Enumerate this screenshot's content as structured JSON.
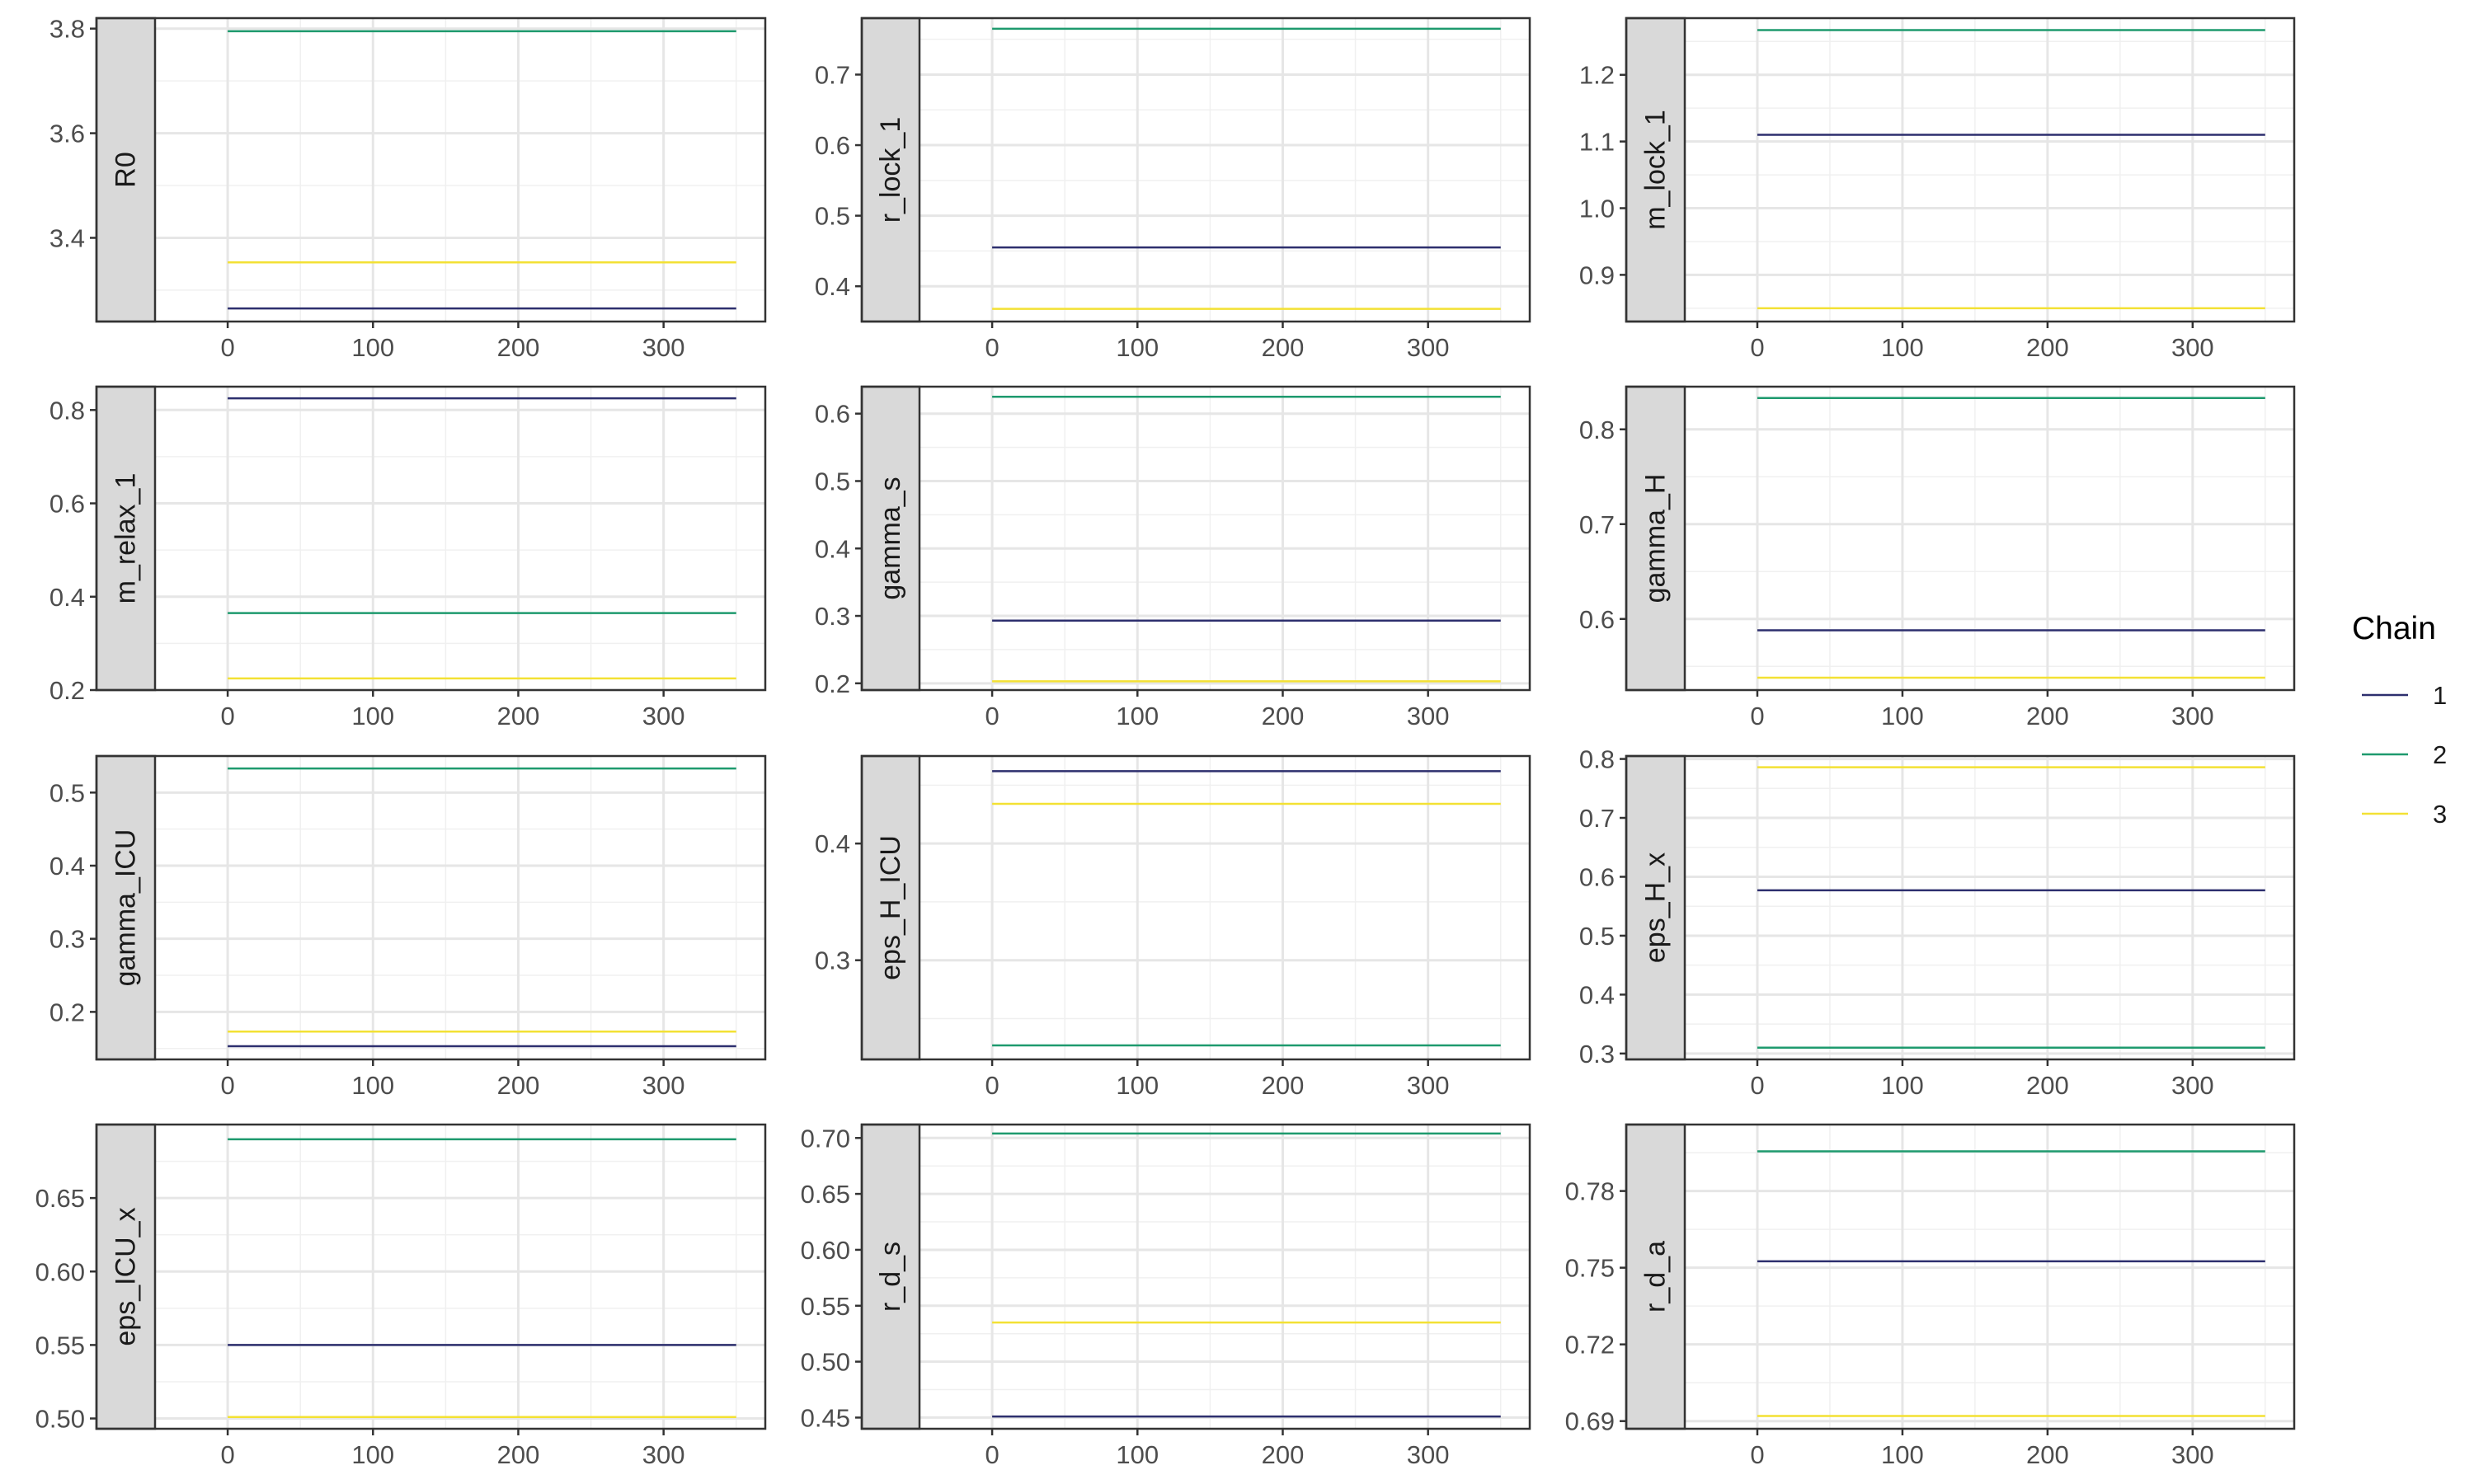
{
  "chart_data": {
    "type": "line",
    "x_ticks": [
      0,
      100,
      200,
      300
    ],
    "xlim": [
      -50,
      370
    ],
    "legend": {
      "title": "Chain",
      "position": "right",
      "entries": [
        {
          "label": "1",
          "color": "#2d2f6e"
        },
        {
          "label": "2",
          "color": "#1e9a6e"
        },
        {
          "label": "3",
          "color": "#f3e134"
        }
      ]
    },
    "facets": [
      {
        "label": "R0",
        "ylim": [
          3.24,
          3.82
        ],
        "y_ticks": [
          "3.4",
          "3.6",
          "3.8"
        ],
        "values": [
          3.265,
          3.795,
          3.353
        ]
      },
      {
        "label": "r_lock_1",
        "ylim": [
          0.35,
          0.78
        ],
        "y_ticks": [
          "0.4",
          "0.5",
          "0.6",
          "0.7"
        ],
        "values": [
          0.455,
          0.765,
          0.368
        ]
      },
      {
        "label": "m_lock_1",
        "ylim": [
          0.83,
          1.285
        ],
        "y_ticks": [
          "0.9",
          "1.0",
          "1.1",
          "1.2"
        ],
        "values": [
          1.11,
          1.267,
          0.85
        ]
      },
      {
        "label": "m_relax_1",
        "ylim": [
          0.2,
          0.85
        ],
        "y_ticks": [
          "0.2",
          "0.4",
          "0.6",
          "0.8"
        ],
        "values": [
          0.825,
          0.365,
          0.225
        ]
      },
      {
        "label": "gamma_s",
        "ylim": [
          0.19,
          0.64
        ],
        "y_ticks": [
          "0.2",
          "0.3",
          "0.4",
          "0.5",
          "0.6"
        ],
        "values": [
          0.293,
          0.625,
          0.203
        ]
      },
      {
        "label": "gamma_H",
        "ylim": [
          0.525,
          0.845
        ],
        "y_ticks": [
          "0.6",
          "0.7",
          "0.8"
        ],
        "values": [
          0.588,
          0.833,
          0.538
        ]
      },
      {
        "label": "gamma_ICU",
        "ylim": [
          0.135,
          0.55
        ],
        "y_ticks": [
          "0.2",
          "0.3",
          "0.4",
          "0.5"
        ],
        "values": [
          0.153,
          0.533,
          0.173
        ]
      },
      {
        "label": "eps_H_ICU",
        "ylim": [
          0.215,
          0.475
        ],
        "y_ticks": [
          "0.3",
          "0.4"
        ],
        "values": [
          0.462,
          0.227,
          0.434
        ]
      },
      {
        "label": "eps_H_x",
        "ylim": [
          0.29,
          0.805
        ],
        "y_ticks": [
          "0.3",
          "0.4",
          "0.5",
          "0.6",
          "0.7",
          "0.8"
        ],
        "values": [
          0.577,
          0.31,
          0.786
        ]
      },
      {
        "label": "eps_ICU_x",
        "ylim": [
          0.493,
          0.7
        ],
        "y_ticks": [
          "0.50",
          "0.55",
          "0.60",
          "0.65"
        ],
        "values": [
          0.55,
          0.69,
          0.501
        ]
      },
      {
        "label": "r_d_s",
        "ylim": [
          0.44,
          0.712
        ],
        "y_ticks": [
          "0.45",
          "0.50",
          "0.55",
          "0.60",
          "0.65",
          "0.70"
        ],
        "values": [
          0.451,
          0.704,
          0.535
        ]
      },
      {
        "label": "r_d_a",
        "ylim": [
          0.687,
          0.806
        ],
        "y_ticks": [
          "0.69",
          "0.72",
          "0.75",
          "0.78"
        ],
        "values": [
          0.7525,
          0.7955,
          0.692
        ]
      }
    ]
  }
}
